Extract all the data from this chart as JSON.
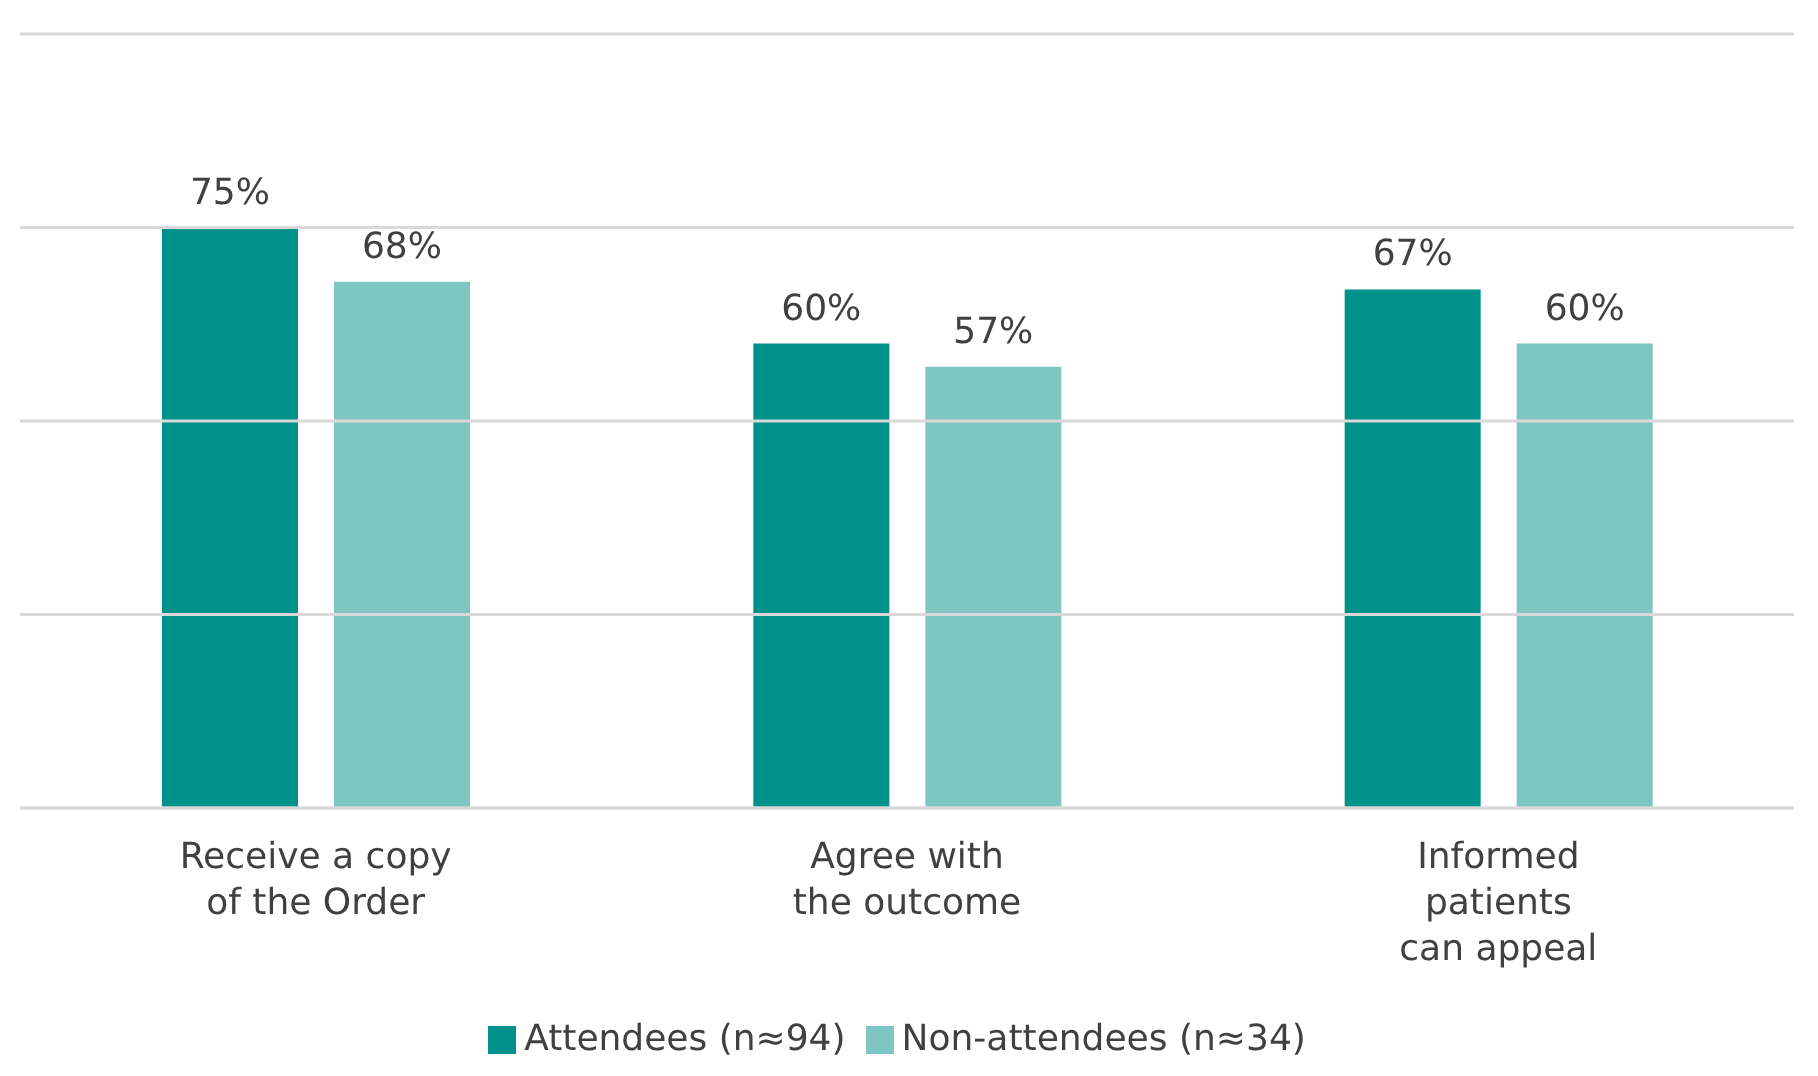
{
  "chart_data": {
    "type": "bar",
    "categories": [
      "Receive a copy\nof the Order",
      "Agree with\nthe outcome",
      "Informed\npatients\ncan appeal"
    ],
    "series": [
      {
        "name": "Attendees (n≈94)",
        "color": "#00918a",
        "values": [
          75,
          60,
          67
        ],
        "value_labels": [
          "75%",
          "60%",
          "67%"
        ]
      },
      {
        "name": "Non-attendees (n≈34)",
        "color": "#7fc5c2",
        "values": [
          68,
          57,
          60
        ],
        "value_labels": [
          "68%",
          "57%",
          "60%"
        ]
      }
    ],
    "ylim": [
      0,
      100
    ],
    "yticks": [
      {
        "value": 0,
        "label": null
      },
      {
        "value": 25,
        "label": null
      },
      {
        "value": 50,
        "label": null
      },
      {
        "value": 75,
        "label": null
      },
      {
        "value": 100,
        "label": null
      }
    ],
    "grid": "y",
    "legend": "bottom",
    "tick_labels": "x"
  }
}
